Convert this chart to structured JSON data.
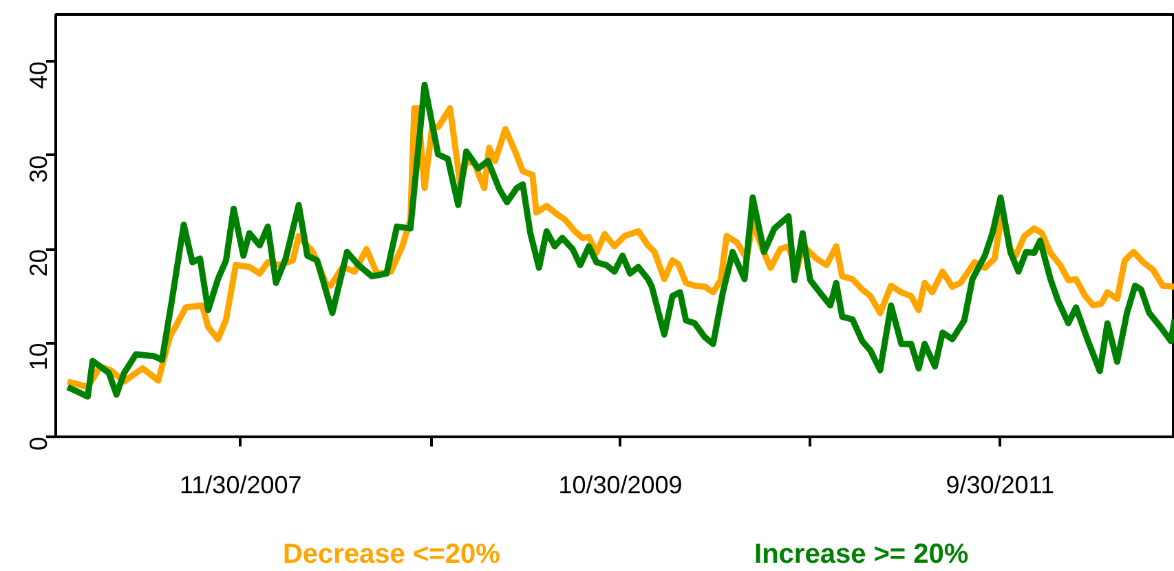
{
  "chart_data": {
    "type": "line",
    "xlim": [
      "2006-12-24",
      "2012-08-17"
    ],
    "ylim": [
      0,
      45
    ],
    "xticks": [
      {
        "value": "2007-11-30",
        "label": "11/30/2007"
      },
      {
        "value": "2008-11-15",
        "label": null
      },
      {
        "value": "2009-10-30",
        "label": "10/30/2009"
      },
      {
        "value": "2010-10-15",
        "label": null
      },
      {
        "value": "2011-09-30",
        "label": "9/30/2011"
      }
    ],
    "yticks": [
      0,
      10,
      20,
      30,
      40
    ],
    "grid": false,
    "legend": "bottom",
    "marker": "none",
    "line_style": "solid",
    "series": [
      {
        "name": "Decrease <=20%",
        "color": "#ffa500",
        "x": [
          "2007-01-15",
          "2007-02-21",
          "2007-03-16",
          "2007-04-04",
          "2007-04-29",
          "2007-06-02",
          "2007-07-01",
          "2007-07-22",
          "2007-08-21",
          "2007-09-20",
          "2007-10-01",
          "2007-10-19",
          "2007-11-03",
          "2007-11-21",
          "2007-12-16",
          "2008-01-04",
          "2008-01-19",
          "2008-02-10",
          "2008-03-05",
          "2008-03-16",
          "2008-04-11",
          "2008-05-07",
          "2008-05-14",
          "2008-06-05",
          "2008-06-27",
          "2008-07-19",
          "2008-08-07",
          "2008-09-02",
          "2008-09-23",
          "2008-10-08",
          "2008-10-15",
          "2008-10-22",
          "2008-11-03",
          "2008-11-17",
          "2008-11-28",
          "2008-12-20",
          "2009-01-08",
          "2009-01-19",
          "2009-02-03",
          "2009-02-21",
          "2009-03-02",
          "2009-03-13",
          "2009-04-01",
          "2009-04-19",
          "2009-05-03",
          "2009-05-21",
          "2009-05-28",
          "2009-06-16",
          "2009-07-08",
          "2009-07-19",
          "2009-08-07",
          "2009-08-21",
          "2009-09-02",
          "2009-09-16",
          "2009-10-01",
          "2009-10-19",
          "2009-11-07",
          "2009-12-02",
          "2009-12-20",
          "2010-01-01",
          "2010-01-19",
          "2010-02-03",
          "2010-02-14",
          "2010-02-28",
          "2010-03-16",
          "2010-04-04",
          "2010-04-19",
          "2010-05-03",
          "2010-05-14",
          "2010-06-02",
          "2010-06-20",
          "2010-07-01",
          "2010-07-19",
          "2010-08-03",
          "2010-08-21",
          "2010-09-05",
          "2010-09-20",
          "2010-10-01",
          "2010-10-26",
          "2010-11-14",
          "2010-12-02",
          "2010-12-13",
          "2011-01-01",
          "2011-01-19",
          "2011-02-03",
          "2011-02-21",
          "2011-03-13",
          "2011-04-01",
          "2011-04-19",
          "2011-05-03",
          "2011-05-14",
          "2011-05-28",
          "2011-06-16",
          "2011-07-04",
          "2011-07-19",
          "2011-08-14",
          "2011-09-02",
          "2011-09-20",
          "2011-10-04",
          "2011-10-19",
          "2011-10-29",
          "2011-11-14",
          "2011-12-02",
          "2011-12-16",
          "2012-01-01",
          "2012-01-19",
          "2012-02-03",
          "2012-02-17",
          "2012-03-05",
          "2012-03-20",
          "2012-04-04",
          "2012-04-15",
          "2012-05-03",
          "2012-05-17",
          "2012-06-02",
          "2012-06-20",
          "2012-07-08",
          "2012-07-26",
          "2012-08-17"
        ],
        "values": [
          5.9,
          5.3,
          7.5,
          7.1,
          5.9,
          7.3,
          6.0,
          10.6,
          13.8,
          14.0,
          11.7,
          10.4,
          12.5,
          18.3,
          18.1,
          17.4,
          18.6,
          18.3,
          18.8,
          21.4,
          19.7,
          16.1,
          16.1,
          18.1,
          17.6,
          20.0,
          17.4,
          17.6,
          20.3,
          23.2,
          35.0,
          35.0,
          26.5,
          33.0,
          33.0,
          35.0,
          26.8,
          29.4,
          29.1,
          26.5,
          30.8,
          29.4,
          32.8,
          30.4,
          28.3,
          27.9,
          23.9,
          24.6,
          23.6,
          23.2,
          21.9,
          21.2,
          21.3,
          19.6,
          21.6,
          20.3,
          21.4,
          21.9,
          20.4,
          19.7,
          16.8,
          18.8,
          18.4,
          16.4,
          16.1,
          16.0,
          15.4,
          16.7,
          21.4,
          20.7,
          19.0,
          22.9,
          20.0,
          18.0,
          20.0,
          20.3,
          17.6,
          20.4,
          19.0,
          18.3,
          20.3,
          17.1,
          16.8,
          15.7,
          15.0,
          13.2,
          16.1,
          15.4,
          15.0,
          13.5,
          16.4,
          15.4,
          17.6,
          16.0,
          16.4,
          18.6,
          18.0,
          19.0,
          24.0,
          20.0,
          19.3,
          21.4,
          22.2,
          21.7,
          19.6,
          18.3,
          16.7,
          16.8,
          15.0,
          14.0,
          14.2,
          15.4,
          14.7,
          18.8,
          19.7,
          18.6,
          17.8,
          16.1,
          16.0
        ]
      },
      {
        "name": "Increase >= 20%",
        "color": "#008000",
        "x": [
          "2007-01-15",
          "2007-02-21",
          "2007-03-02",
          "2007-04-01",
          "2007-04-15",
          "2007-04-29",
          "2007-05-21",
          "2007-06-23",
          "2007-07-08",
          "2007-07-26",
          "2007-08-17",
          "2007-09-02",
          "2007-09-16",
          "2007-10-01",
          "2007-10-19",
          "2007-11-03",
          "2007-11-17",
          "2007-12-05",
          "2007-12-16",
          "2008-01-04",
          "2008-01-19",
          "2008-02-03",
          "2008-02-21",
          "2008-03-16",
          "2008-04-01",
          "2008-04-19",
          "2008-05-17",
          "2008-06-13",
          "2008-07-04",
          "2008-07-29",
          "2008-08-25",
          "2008-09-13",
          "2008-10-08",
          "2008-11-03",
          "2008-11-28",
          "2008-12-16",
          "2009-01-04",
          "2009-01-19",
          "2009-02-10",
          "2009-02-28",
          "2009-03-20",
          "2009-04-04",
          "2009-04-22",
          "2009-05-03",
          "2009-05-17",
          "2009-06-02",
          "2009-06-16",
          "2009-07-01",
          "2009-07-15",
          "2009-08-03",
          "2009-08-17",
          "2009-09-02",
          "2009-09-16",
          "2009-10-04",
          "2009-10-19",
          "2009-11-03",
          "2009-11-17",
          "2009-12-02",
          "2009-12-20",
          "2009-12-27",
          "2010-01-19",
          "2010-02-03",
          "2010-02-17",
          "2010-02-28",
          "2010-03-16",
          "2010-04-04",
          "2010-04-19",
          "2010-05-07",
          "2010-05-25",
          "2010-06-16",
          "2010-07-01",
          "2010-07-22",
          "2010-08-10",
          "2010-09-05",
          "2010-09-16",
          "2010-10-01",
          "2010-10-15",
          "2010-11-03",
          "2010-11-21",
          "2010-12-02",
          "2010-12-13",
          "2011-01-01",
          "2011-01-19",
          "2011-02-03",
          "2011-02-21",
          "2011-03-13",
          "2011-04-01",
          "2011-04-19",
          "2011-05-03",
          "2011-05-14",
          "2011-06-02",
          "2011-06-16",
          "2011-07-04",
          "2011-07-26",
          "2011-08-10",
          "2011-09-02",
          "2011-09-16",
          "2011-10-01",
          "2011-10-19",
          "2011-11-03",
          "2011-11-17",
          "2011-12-02",
          "2011-12-13",
          "2012-01-01",
          "2012-01-15",
          "2012-02-03",
          "2012-02-17",
          "2012-03-09",
          "2012-04-01",
          "2012-04-15",
          "2012-05-03",
          "2012-05-21",
          "2012-06-05",
          "2012-06-16",
          "2012-07-01",
          "2012-07-22",
          "2012-08-10",
          "2012-08-17"
        ],
        "values": [
          5.3,
          4.3,
          8.1,
          6.8,
          4.5,
          6.8,
          8.8,
          8.6,
          8.2,
          14.5,
          22.6,
          18.6,
          19.0,
          13.5,
          16.8,
          18.8,
          24.3,
          19.3,
          21.7,
          20.4,
          22.4,
          16.4,
          19.0,
          24.7,
          19.3,
          18.8,
          13.2,
          19.7,
          18.3,
          17.1,
          17.4,
          22.4,
          22.2,
          37.5,
          30.1,
          29.6,
          24.7,
          30.4,
          28.6,
          29.4,
          26.5,
          25.0,
          26.5,
          26.9,
          21.7,
          18.0,
          21.9,
          20.3,
          21.2,
          20.0,
          18.3,
          20.3,
          18.6,
          18.3,
          17.6,
          19.3,
          17.4,
          18.1,
          16.8,
          16.0,
          10.9,
          15.0,
          15.4,
          12.4,
          12.1,
          10.6,
          9.9,
          15.4,
          19.7,
          16.8,
          25.5,
          19.7,
          22.2,
          23.5,
          16.7,
          21.7,
          16.7,
          15.3,
          14.0,
          16.4,
          12.8,
          12.5,
          10.2,
          9.2,
          7.1,
          14.0,
          9.9,
          9.9,
          7.3,
          9.9,
          7.5,
          11.1,
          10.4,
          12.4,
          16.8,
          19.3,
          21.7,
          25.5,
          19.7,
          17.6,
          19.7,
          19.6,
          20.9,
          16.8,
          14.5,
          12.1,
          13.8,
          10.4,
          7.0,
          12.1,
          8.0,
          13.2,
          16.1,
          15.7,
          13.2,
          11.7,
          10.2,
          12.5
        ]
      }
    ]
  }
}
